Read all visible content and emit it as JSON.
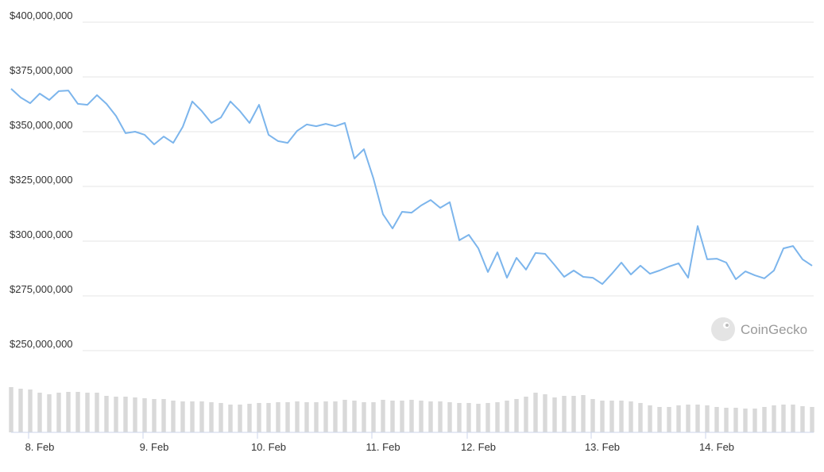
{
  "chart_data": {
    "type": "line",
    "watermark": "CoinGecko",
    "categories": [
      null,
      null,
      null,
      "8. Feb",
      null,
      null,
      null,
      null,
      null,
      null,
      null,
      null,
      null,
      null,
      null,
      "9. Feb",
      null,
      null,
      null,
      null,
      null,
      null,
      null,
      null,
      null,
      null,
      null,
      "10. Feb",
      null,
      null,
      null,
      null,
      null,
      null,
      null,
      null,
      null,
      null,
      null,
      "11. Feb",
      null,
      null,
      null,
      null,
      null,
      null,
      null,
      null,
      null,
      "12. Feb",
      null,
      null,
      null,
      null,
      null,
      null,
      null,
      null,
      null,
      null,
      null,
      null,
      "13. Feb",
      null,
      null,
      null,
      null,
      null,
      null,
      null,
      null,
      null,
      null,
      null,
      "14. Feb",
      null,
      null,
      null,
      null,
      null,
      null,
      null,
      null,
      null,
      null
    ],
    "series": [
      {
        "color": "#7cb5ec",
        "values": [
          369600000,
          365600000,
          363000000,
          367400000,
          364500000,
          368500000,
          368800000,
          362700000,
          362300000,
          366700000,
          362700000,
          357200000,
          349300000,
          350000000,
          348600000,
          344200000,
          347800000,
          344900000,
          352200000,
          363800000,
          359400000,
          354000000,
          356500000,
          363800000,
          359400000,
          354000000,
          362300000,
          348600000,
          345700000,
          344900000,
          350400000,
          353300000,
          352500000,
          353600000,
          352500000,
          354000000,
          337700000,
          342000000,
          328600000,
          312300000,
          305800000,
          313400000,
          313000000,
          316300000,
          318800000,
          315200000,
          317800000,
          300400000,
          302900000,
          296700000,
          285900000,
          294900000,
          283300000,
          292400000,
          287000000,
          294600000,
          294200000,
          289100000,
          283700000,
          286600000,
          283700000,
          283300000,
          280400000,
          285100000,
          290200000,
          284800000,
          288800000,
          285100000,
          286600000,
          288400000,
          289900000,
          283300000,
          306900000,
          291700000,
          292000000,
          290200000,
          282600000,
          286200000,
          284400000,
          283000000,
          286600000,
          296700000,
          297800000,
          291700000,
          288800000
        ]
      }
    ],
    "volume": {
      "color": "#d9d9d9",
      "values": [
        57,
        55,
        54,
        50,
        48,
        50,
        51,
        51,
        50,
        50,
        46,
        45,
        45,
        44,
        43,
        42,
        42,
        40,
        39,
        39,
        39,
        38,
        37,
        35,
        35,
        36,
        37,
        37,
        38,
        38,
        39,
        38,
        38,
        39,
        39,
        41,
        40,
        38,
        38,
        41,
        40,
        40,
        41,
        40,
        39,
        39,
        38,
        37,
        37,
        36,
        37,
        38,
        40,
        42,
        45,
        50,
        48,
        44,
        46,
        46,
        47,
        42,
        40,
        40,
        40,
        39,
        37,
        34,
        32,
        32,
        34,
        35,
        35,
        34,
        32,
        31,
        31,
        30,
        30,
        32,
        34,
        35,
        35,
        33,
        32
      ]
    },
    "y2lim": [
      0,
      60
    ],
    "ylim": [
      250000000,
      400000000
    ],
    "yticks": [
      {
        "value": 250000000,
        "label": "$250,000,000"
      },
      {
        "value": 275000000,
        "label": "$275,000,000"
      },
      {
        "value": 300000000,
        "label": "$300,000,000"
      },
      {
        "value": 325000000,
        "label": "$325,000,000"
      },
      {
        "value": 350000000,
        "label": "$350,000,000"
      },
      {
        "value": 375000000,
        "label": "$375,000,000"
      },
      {
        "value": 400000000,
        "label": "$400,000,000"
      }
    ],
    "grid": true
  }
}
